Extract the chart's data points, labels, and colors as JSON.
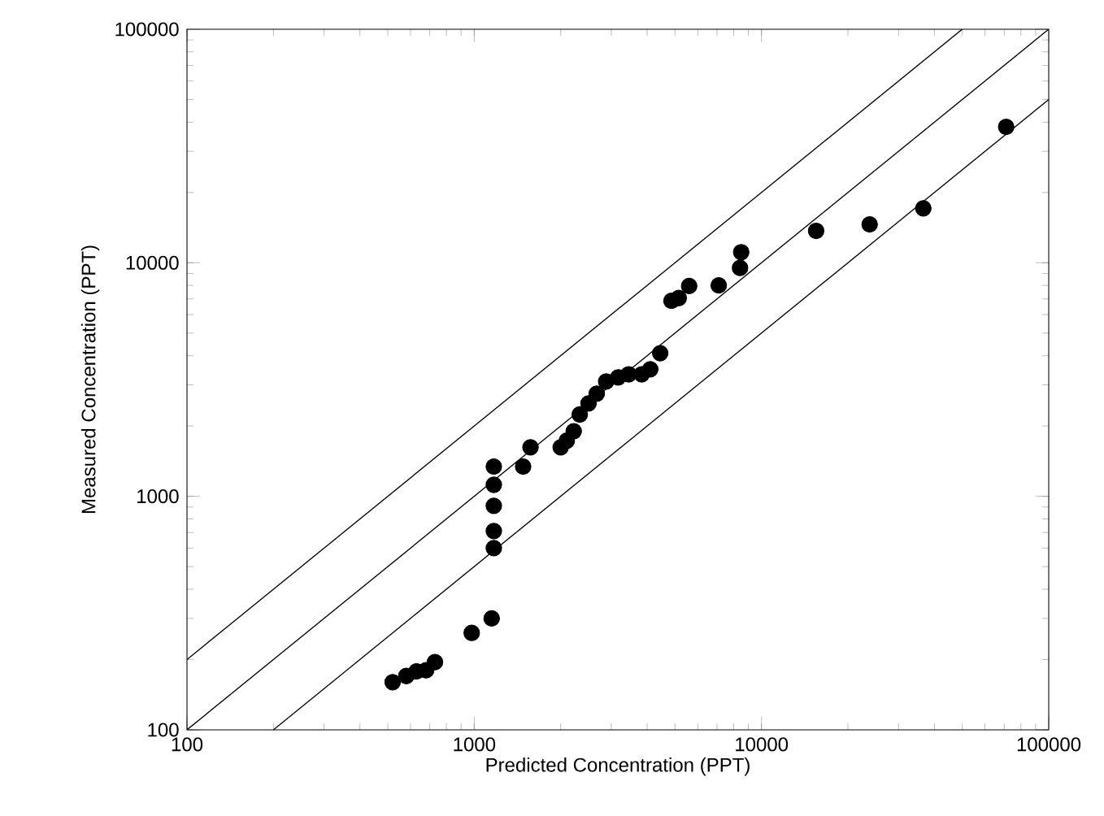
{
  "chart_data": {
    "type": "scatter",
    "xlabel": "Predicted Concentration (PPT)",
    "ylabel": "Measured Concentration (PPT)",
    "log": "xy",
    "grid": false,
    "xlim": [
      100,
      100000
    ],
    "ylim": [
      100,
      100000
    ],
    "xticks": [
      100,
      1000,
      10000,
      100000
    ],
    "yticks": [
      100,
      1000,
      10000,
      100000
    ],
    "series": [
      {
        "type": "line",
        "color": "#000000",
        "marker": "none",
        "line_style": "solid",
        "x": [
          100,
          50000
        ],
        "values": [
          200,
          100000
        ]
      },
      {
        "type": "line",
        "color": "#000000",
        "marker": "none",
        "line_style": "solid",
        "x": [
          100,
          100000
        ],
        "values": [
          100,
          100000
        ]
      },
      {
        "type": "line",
        "color": "#000000",
        "marker": "none",
        "line_style": "solid",
        "x": [
          200,
          100000
        ],
        "values": [
          100,
          50000
        ]
      },
      {
        "color": "#000000",
        "marker": "circle",
        "x": [
          520,
          580,
          630,
          680,
          730,
          980,
          1150,
          1170,
          1170,
          1170,
          1170,
          1170,
          1480,
          1570,
          2000,
          2100,
          2220,
          2330,
          2500,
          2670,
          2880,
          3170,
          3450,
          3830,
          4100,
          4440,
          4860,
          5150,
          5600,
          7100,
          8420,
          8500,
          15500,
          23800,
          36600,
          71100
        ],
        "values": [
          160,
          170,
          178,
          180,
          195,
          260,
          300,
          600,
          710,
          910,
          1120,
          1340,
          1340,
          1620,
          1620,
          1730,
          1900,
          2240,
          2500,
          2750,
          3100,
          3230,
          3330,
          3330,
          3500,
          4100,
          6870,
          7060,
          7950,
          8000,
          9500,
          11100,
          13700,
          14600,
          17100,
          38200
        ]
      }
    ]
  }
}
